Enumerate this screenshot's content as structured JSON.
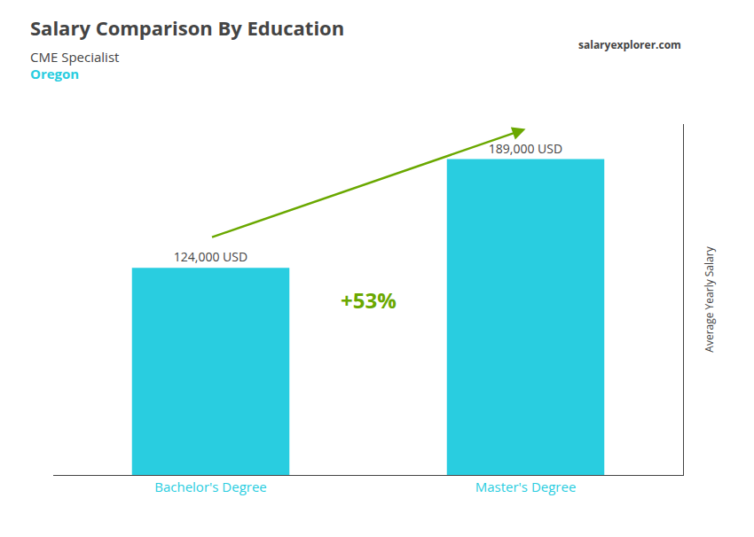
{
  "chart_data": {
    "type": "bar",
    "title": "Salary Comparison By Education",
    "subtitle": [
      "CME Specialist",
      "Oregon"
    ],
    "categories": [
      "Bachelor's Degree",
      "Master's Degree"
    ],
    "values": [
      124000,
      189000
    ],
    "value_labels": [
      "124,000 USD",
      "189,000 USD"
    ],
    "data_labels": true,
    "color": "#29cde0",
    "ylabel": "Average Yearly Salary",
    "ylim": [
      0,
      210000
    ],
    "tick_labels": "x",
    "grid": false,
    "annotations": [
      "+53%"
    ],
    "watermark": "salaryexplorer.com"
  }
}
